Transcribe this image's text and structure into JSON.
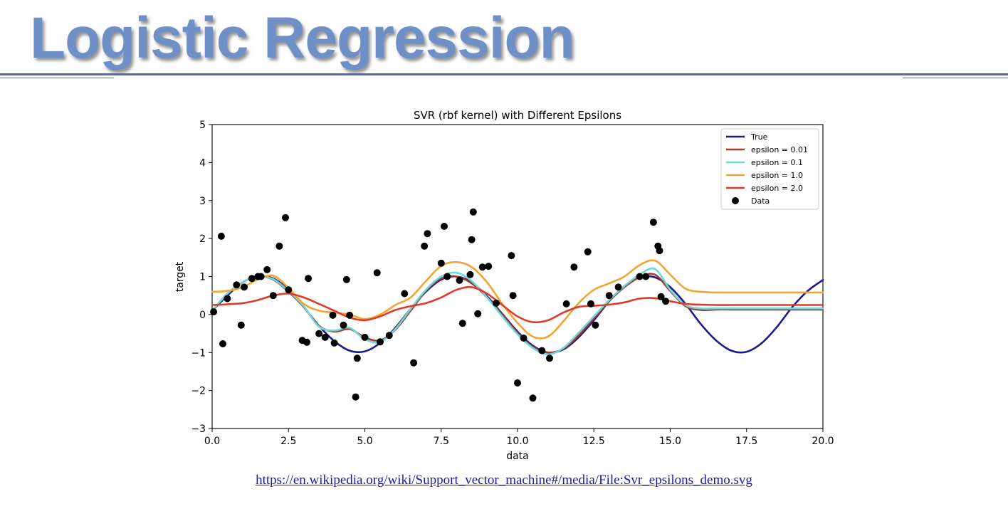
{
  "slide": {
    "title": "Logistic Regression",
    "source_url": "https://en.wikipedia.org/wiki/Support_vector_machine#/media/File:Svr_epsilons_demo.svg"
  },
  "chart_data": {
    "type": "line",
    "title": "SVR (rbf kernel) with Different Epsilons",
    "xlabel": "data",
    "ylabel": "target",
    "xlim": [
      0,
      20
    ],
    "ylim": [
      -3,
      5
    ],
    "xticks": [
      "0.0",
      "2.5",
      "5.0",
      "7.5",
      "10.0",
      "12.5",
      "15.0",
      "17.5",
      "20.0"
    ],
    "yticks": [
      "−3",
      "−2",
      "−1",
      "0",
      "1",
      "2",
      "3",
      "4",
      "5"
    ],
    "legend_position": "top-right",
    "grid": false,
    "x": [
      0,
      0.5,
      1,
      1.5,
      2,
      2.5,
      3,
      3.5,
      4,
      4.5,
      5,
      5.5,
      6,
      6.5,
      7,
      7.5,
      8,
      8.5,
      9,
      9.5,
      10,
      10.5,
      11,
      11.5,
      12,
      12.5,
      13,
      13.5,
      14,
      14.5,
      15,
      15.5,
      16,
      16.5,
      17,
      17.5,
      18,
      18.5,
      19,
      19.5,
      20
    ],
    "series": [
      {
        "name": "True",
        "color": "#1a1a8c",
        "values": [
          0.1,
          0.5,
          0.85,
          1.0,
          0.95,
          0.65,
          0.2,
          -0.3,
          -0.7,
          -0.95,
          -0.97,
          -0.75,
          -0.35,
          0.15,
          0.6,
          0.92,
          1.0,
          0.85,
          0.48,
          0.02,
          -0.45,
          -0.82,
          -1.0,
          -0.92,
          -0.6,
          -0.15,
          0.35,
          0.75,
          0.98,
          0.98,
          0.72,
          0.28,
          -0.25,
          -0.68,
          -0.95,
          -0.98,
          -0.75,
          -0.32,
          0.2,
          0.62,
          0.91
        ]
      },
      {
        "name": "epsilon = 0.01",
        "color": "#a23a30",
        "values": [
          0.1,
          0.55,
          0.85,
          1.0,
          0.92,
          0.6,
          0.2,
          -0.3,
          -0.45,
          -0.38,
          -0.6,
          -0.68,
          -0.4,
          0.1,
          0.62,
          0.95,
          1.0,
          0.82,
          0.45,
          0.0,
          -0.48,
          -0.85,
          -1.0,
          -0.9,
          -0.55,
          -0.1,
          0.35,
          0.72,
          0.98,
          1.05,
          0.62,
          0.22,
          0.12,
          0.13,
          0.13,
          0.13,
          0.13,
          0.13,
          0.13,
          0.13,
          0.13
        ]
      },
      {
        "name": "epsilon = 0.1",
        "color": "#6fd8d8",
        "values": [
          0.1,
          0.55,
          0.85,
          1.0,
          0.93,
          0.62,
          0.22,
          -0.32,
          -0.42,
          -0.35,
          -0.65,
          -0.72,
          -0.38,
          0.15,
          0.65,
          1.0,
          1.1,
          0.88,
          0.45,
          -0.05,
          -0.52,
          -0.88,
          -1.05,
          -0.88,
          -0.48,
          -0.05,
          0.38,
          0.75,
          1.05,
          1.2,
          0.65,
          0.25,
          0.16,
          0.16,
          0.16,
          0.16,
          0.16,
          0.16,
          0.16,
          0.16,
          0.16
        ]
      },
      {
        "name": "epsilon = 1.0",
        "color": "#f2a432",
        "values": [
          0.6,
          0.62,
          0.72,
          0.92,
          1.02,
          0.7,
          0.28,
          0.1,
          0.05,
          0.0,
          -0.12,
          0.0,
          0.25,
          0.45,
          0.88,
          1.28,
          1.38,
          1.25,
          0.85,
          0.28,
          -0.22,
          -0.58,
          -0.58,
          -0.18,
          0.3,
          0.65,
          0.82,
          1.0,
          1.3,
          1.42,
          1.05,
          0.68,
          0.6,
          0.58,
          0.58,
          0.58,
          0.58,
          0.58,
          0.58,
          0.58,
          0.58
        ]
      },
      {
        "name": "epsilon = 2.0",
        "color": "#e23a2a",
        "values": [
          0.25,
          0.27,
          0.3,
          0.38,
          0.5,
          0.55,
          0.45,
          0.28,
          0.1,
          -0.08,
          -0.15,
          -0.05,
          0.12,
          0.22,
          0.3,
          0.45,
          0.65,
          0.72,
          0.55,
          0.25,
          -0.05,
          -0.2,
          -0.15,
          0.05,
          0.2,
          0.23,
          0.26,
          0.32,
          0.42,
          0.43,
          0.35,
          0.28,
          0.26,
          0.25,
          0.25,
          0.25,
          0.25,
          0.25,
          0.25,
          0.25,
          0.25
        ]
      }
    ],
    "scatter": {
      "name": "Data",
      "color": "#000000",
      "points": [
        [
          0.05,
          0.07
        ],
        [
          0.3,
          2.06
        ],
        [
          0.35,
          -0.77
        ],
        [
          0.5,
          0.42
        ],
        [
          0.8,
          0.78
        ],
        [
          0.95,
          -0.28
        ],
        [
          1.05,
          0.72
        ],
        [
          1.3,
          0.95
        ],
        [
          1.5,
          1.0
        ],
        [
          1.6,
          1.0
        ],
        [
          1.8,
          1.18
        ],
        [
          2.0,
          0.5
        ],
        [
          2.2,
          1.8
        ],
        [
          2.4,
          2.55
        ],
        [
          2.5,
          0.65
        ],
        [
          2.95,
          -0.68
        ],
        [
          3.1,
          -0.73
        ],
        [
          3.15,
          0.95
        ],
        [
          3.5,
          -0.5
        ],
        [
          3.7,
          -0.6
        ],
        [
          3.95,
          -0.02
        ],
        [
          4.0,
          -0.75
        ],
        [
          4.3,
          -0.28
        ],
        [
          4.4,
          0.92
        ],
        [
          4.5,
          -0.02
        ],
        [
          4.7,
          -2.17
        ],
        [
          4.75,
          -1.15
        ],
        [
          5.0,
          -0.6
        ],
        [
          5.4,
          1.1
        ],
        [
          5.5,
          -0.72
        ],
        [
          5.8,
          -0.55
        ],
        [
          6.3,
          0.55
        ],
        [
          6.6,
          -1.27
        ],
        [
          6.95,
          1.8
        ],
        [
          7.05,
          2.13
        ],
        [
          7.5,
          1.35
        ],
        [
          7.6,
          2.32
        ],
        [
          7.7,
          1.0
        ],
        [
          8.1,
          0.9
        ],
        [
          8.2,
          -0.23
        ],
        [
          8.45,
          1.05
        ],
        [
          8.5,
          1.97
        ],
        [
          8.55,
          2.7
        ],
        [
          8.7,
          0.02
        ],
        [
          8.85,
          1.25
        ],
        [
          9.05,
          1.27
        ],
        [
          9.3,
          0.3
        ],
        [
          9.8,
          1.55
        ],
        [
          9.85,
          0.5
        ],
        [
          10.0,
          -1.8
        ],
        [
          10.2,
          -0.62
        ],
        [
          10.5,
          -2.2
        ],
        [
          10.8,
          -0.95
        ],
        [
          11.05,
          -1.15
        ],
        [
          11.6,
          0.28
        ],
        [
          11.85,
          1.25
        ],
        [
          12.3,
          1.65
        ],
        [
          12.4,
          0.28
        ],
        [
          12.55,
          -0.28
        ],
        [
          13.0,
          0.5
        ],
        [
          13.3,
          0.72
        ],
        [
          14.0,
          1.0
        ],
        [
          14.2,
          1.0
        ],
        [
          14.45,
          2.43
        ],
        [
          14.6,
          1.8
        ],
        [
          14.65,
          1.68
        ],
        [
          14.7,
          0.47
        ],
        [
          14.85,
          0.35
        ]
      ]
    }
  }
}
